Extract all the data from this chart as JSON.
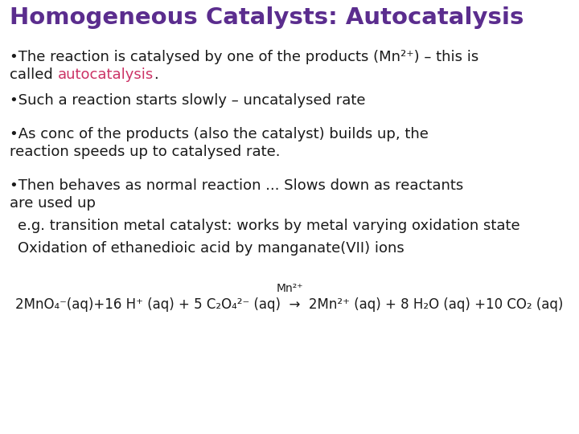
{
  "title": "Homogeneous Catalysts: Autocatalysis",
  "title_color": "#5b2d8e",
  "title_fontsize": 21,
  "background_color": "#ffffff",
  "bullet_color": "#1a1a1a",
  "bullet_fontsize": 13,
  "autocatalysis_color": "#cc3366",
  "equation_color": "#1a1a1a",
  "figw": 7.2,
  "figh": 5.4,
  "dpi": 100
}
